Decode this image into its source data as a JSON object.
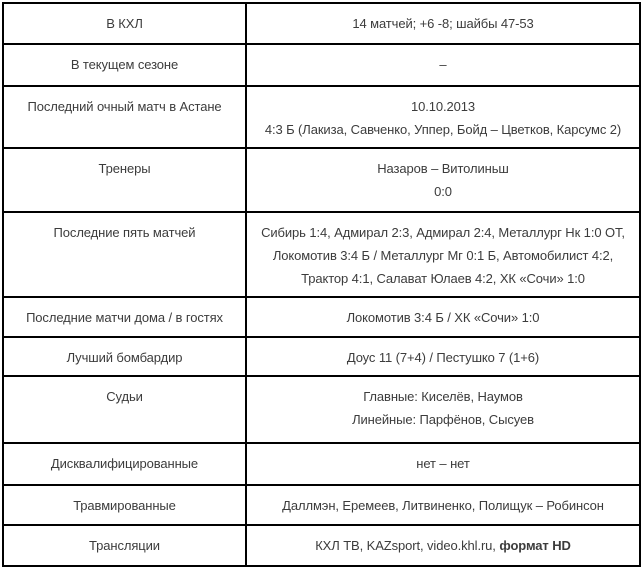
{
  "table": {
    "name": "match-stats-table",
    "border_color": "#000000",
    "text_color": "#3c3c3c",
    "background_color": "#ffffff",
    "rows": [
      {
        "id": "khl",
        "label": "В КХЛ",
        "values": [
          "14 матчей; +6 -8; шайбы 47-53"
        ]
      },
      {
        "id": "current-season",
        "label": "В текущем сезоне",
        "values": [
          "–"
        ]
      },
      {
        "id": "last-match-astana",
        "label": "Последний очный матч в Астане",
        "values": [
          "10.10.2013",
          "4:3 Б (Лакиза, Савченко, Уппер, Бойд – Цветков, Карсумс 2)"
        ]
      },
      {
        "id": "coaches",
        "label": "Тренеры",
        "values": [
          "Назаров – Витолиньш",
          "0:0"
        ]
      },
      {
        "id": "last-five-matches",
        "label": "Последние пять матчей",
        "values": [
          "Сибирь 1:4, Адмирал 2:3, Адмирал 2:4, Металлург Нк 1:0 ОТ, Локомотив 3:4 Б / Металлург Мг 0:1 Б, Автомобилист 4:2, Трактор 4:1, Салават Юлаев 4:2, ХК «Сочи» 1:0"
        ]
      },
      {
        "id": "last-home-away",
        "label": "Последние матчи дома / в гостях",
        "values": [
          "Локомотив 3:4 Б / ХК «Сочи» 1:0"
        ]
      },
      {
        "id": "top-scorer",
        "label": "Лучший бомбардир",
        "values": [
          "Доус 11 (7+4) / Пестушко 7 (1+6)"
        ]
      },
      {
        "id": "referees",
        "label": "Судьи",
        "values": [
          "Главные: Киселёв, Наумов",
          "Линейные: Парфёнов, Сысуев"
        ]
      },
      {
        "id": "disqualified",
        "label": "Дисквалифицированные",
        "values": [
          "нет – нет"
        ]
      },
      {
        "id": "injured",
        "label": "Травмированные",
        "values": [
          "Даллмэн, Еремеев, Литвиненко, Полищук – Робинсон"
        ]
      },
      {
        "id": "broadcasts",
        "label": "Трансляции",
        "values": [
          [
            {
              "text": "КХЛ ТВ, KAZsport, video.khl.ru, ",
              "bold": false
            },
            {
              "text": "формат HD",
              "bold": true
            }
          ]
        ]
      }
    ]
  }
}
